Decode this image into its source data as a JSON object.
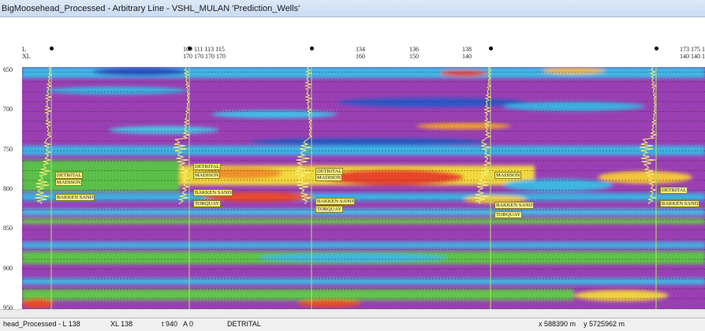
{
  "window": {
    "title": "BigMoosehead_Processed - Arbitrary Line - VSHL_MULAN 'Prediction_Wells'"
  },
  "header": {
    "row_labels": [
      "L",
      "XL"
    ],
    "line_groups": [
      {
        "line": "109 111 113 115",
        "xline": "170 170 170 170"
      },
      {
        "line": "134",
        "xline": "160"
      },
      {
        "line": "136",
        "xline": "150"
      },
      {
        "line": "138",
        "xline": "140"
      },
      {
        "line": "173 175 1",
        "xline": "140 140 1"
      }
    ]
  },
  "depth_axis": {
    "ticks": [
      "650",
      "700",
      "750",
      "800",
      "850",
      "900",
      "950"
    ]
  },
  "wells": [
    {
      "tops": [
        "DETRITAL",
        "MADISON",
        "BAKKEN SAND"
      ]
    },
    {
      "tops": [
        "DETRITAL",
        "MADISON",
        "BAKKEN SAND",
        "TORQUAY"
      ]
    },
    {
      "tops": [
        "DETRITAL",
        "MADISON",
        "BAKKEN SAND",
        "TORQUAY"
      ]
    },
    {
      "tops": [
        "MADISON",
        "BAKKEN SAND",
        "TORQUAY"
      ]
    },
    {
      "tops": [
        "DETRITAL",
        "BAKKEN SAND"
      ]
    }
  ],
  "status_bar": {
    "fields": [
      "head_Processed - L 138",
      "XL 138",
      "t 940",
      "A 0",
      "DETRITAL",
      "x 588390 m",
      "y 5725962 m"
    ]
  }
}
